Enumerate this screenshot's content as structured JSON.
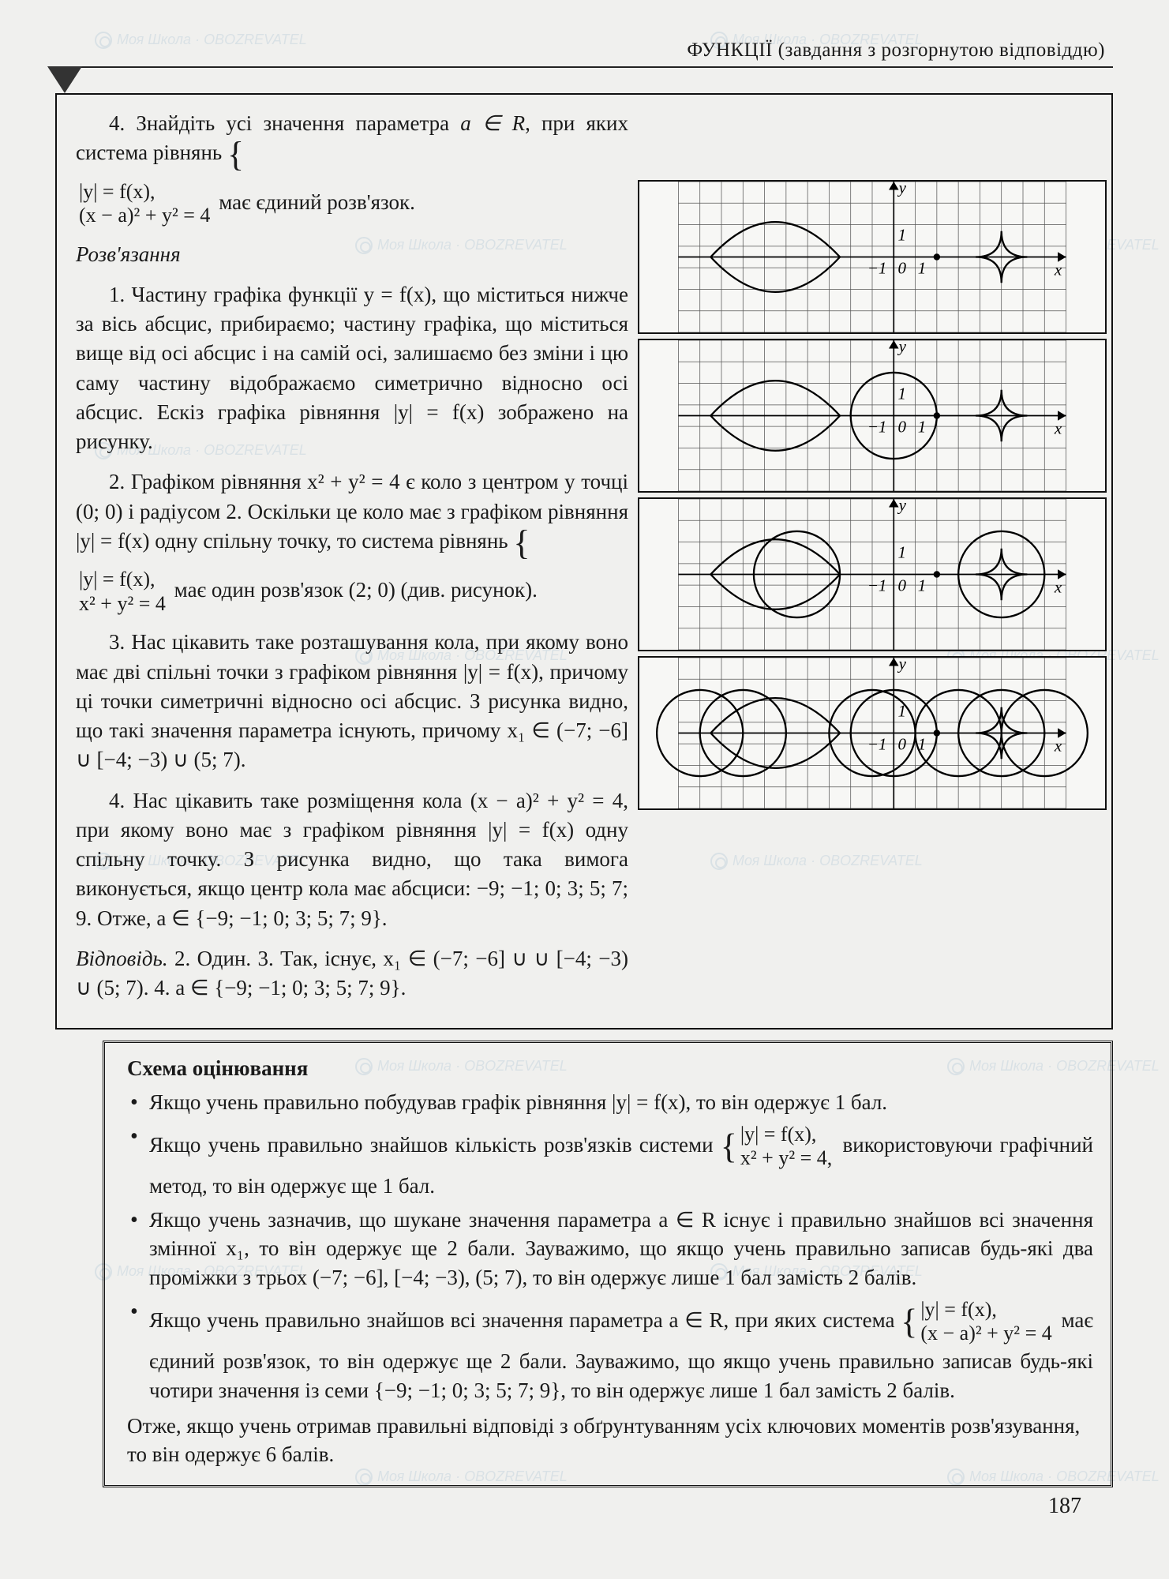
{
  "header": {
    "title": "ФУНКЦІЇ (завдання з розгорнутою відповіддю)"
  },
  "problem": {
    "num": "4.",
    "intro_a": "Знайдіть усі значення параметра ",
    "param": "a ∈ R",
    "intro_b": ", при яких система рівнянь",
    "sys1_line1": "|y| = f(x),",
    "sys1_line2": "(x − a)² + y² = 4",
    "intro_c": "має єдиний розв'язок.",
    "rozv": "Розв'язання"
  },
  "steps": {
    "s1": "1. Частину графіка функції y = f(x), що міститься нижче за вісь абсцис, прибираємо; частину графіка, що міститься вище від осі абсцис і на самій осі, залишаємо без зміни і цю саму частину відображаємо симетрично відносно осі абсцис. Ескіз графіка рівняння |y| = f(x) зображено на рисунку.",
    "s2a": "2. Графіком рівняння x² + y² = 4 є коло з центром у точці (0; 0) і радіусом 2. Оскільки це коло має з графіком рівняння |y| = f(x) одну спільну точку, то система рівнянь",
    "s2_sys1": "|y| = f(x),",
    "s2_sys2": "x² + y² = 4",
    "s2b": "має один розв'язок (2; 0) (див. рисунок).",
    "s3": "3. Нас цікавить таке розташування кола, при якому воно має дві спільні точки з графіком рівняння |y| = f(x), причому ці точки симетричні відносно осі абсцис. З рисунка видно, що такі значення параметра існують, причому x₁ ∈ (−7; −6] ∪ [−4; −3) ∪ (5; 7).",
    "s4": "4. Нас цікавить таке розміщення кола (x − a)² + y² = 4, при якому воно має з графіком рівняння |y| = f(x) одну спільну точку. З рисунка видно, що така вимога виконується, якщо центр кола має абсциси: −9; −1; 0; 3; 5; 7; 9. Отже, a ∈ {−9; −1; 0; 3; 5; 7; 9}.",
    "answer_label": "Відповідь.",
    "answer": " 2. Один. 3. Так, існує, x₁ ∈ (−7; −6] ∪ ∪ [−4; −3) ∪ (5; 7). 4. a ∈ {−9; −1; 0; 3; 5; 7; 9}."
  },
  "scheme": {
    "title": "Схема оцінювання",
    "b1": "Якщо учень правильно побудував графік рівняння |y| = f(x), то він одержує 1 бал.",
    "b2a": "Якщо учень правильно знайшов кількість розв'язків системи",
    "b2_sys1": "|y| = f(x),",
    "b2_sys2": "x² + y² = 4,",
    "b2b": "використовуючи графічний метод, то він одержує ще 1 бал.",
    "b3": "Якщо учень зазначив, що шукане значення параметра a ∈ R існує і правильно знайшов всі значення змінної x₁, то він одержує ще 2 бали. Зауважимо, що якщо учень правильно записав будь-які два проміжки з трьох (−7; −6], [−4; −3), (5; 7), то він одержує лише 1 бал замість 2 балів.",
    "b4a": "Якщо учень правильно знайшов всі значення параметра a ∈ R, при яких система",
    "b4_sys1": "|y| = f(x),",
    "b4_sys2": "(x − a)² + y² = 4",
    "b4b": "має єдиний розв'язок, то він одержує ще 2 бали. Зауважимо, що якщо учень правильно записав будь-які чотири значення із семи {−9; −1; 0; 3; 5; 7; 9}, то він одержує лише 1 бал замість 2 балів.",
    "final": "Отже, якщо учень отримав правильні відповіді з обґрунтуванням усіх ключових моментів розв'язування, то він одержує 6 балів."
  },
  "graphs": {
    "grid": {
      "cols": 18,
      "rows": 7,
      "cell": 26
    },
    "axis_labels": {
      "x": "x",
      "y": "y",
      "zero": "0",
      "one": "1",
      "none": "−1"
    },
    "g1": {
      "origin_col": 10,
      "lens_center": 4.5,
      "star_center": 15,
      "dot_col": 12
    },
    "g2": {
      "origin_col": 10,
      "circle_center_col": 10,
      "circle_r": 2
    },
    "g3": {
      "origin_col": 10,
      "circles": [
        {
          "cx_col": 5.5,
          "r": 2
        },
        {
          "cx_col": 15,
          "r": 2
        }
      ]
    },
    "g4": {
      "origin_col": 10,
      "circles": [
        {
          "cx_col": 1,
          "r": 2
        },
        {
          "cx_col": 3,
          "r": 2
        },
        {
          "cx_col": 9,
          "r": 2
        },
        {
          "cx_col": 10,
          "r": 2
        },
        {
          "cx_col": 13,
          "r": 2
        },
        {
          "cx_col": 15,
          "r": 2
        },
        {
          "cx_col": 17,
          "r": 2
        }
      ]
    },
    "colors": {
      "grid": "#555",
      "axis": "#000",
      "curve": "#000"
    }
  },
  "page_number": "187"
}
